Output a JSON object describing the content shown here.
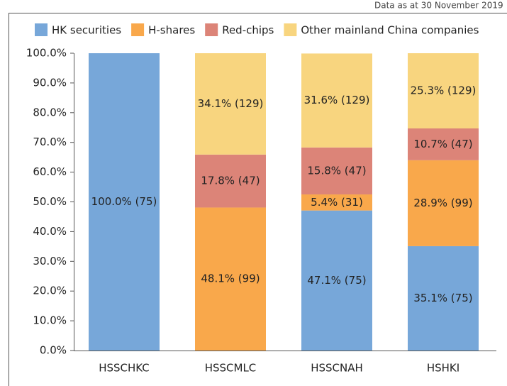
{
  "chart_data": {
    "type": "stacked_bar",
    "subtitle": "Data as at 30 November 2019",
    "categories": [
      "HSSCHKC",
      "HSSCMLC",
      "HSSCNAH",
      "HSHKI"
    ],
    "series": [
      {
        "name": "HK securities",
        "color": "#77a7d9",
        "values": [
          100.0,
          null,
          47.1,
          35.1
        ],
        "value_labels": [
          "100.0% (75)",
          null,
          "47.1% (75)",
          "35.1% (75)"
        ]
      },
      {
        "name": "H-shares",
        "color": "#f9a84b",
        "values": [
          null,
          48.1,
          5.4,
          28.9
        ],
        "value_labels": [
          null,
          "48.1% (99)",
          "5.4% (31)",
          "28.9% (99)"
        ]
      },
      {
        "name": "Red-chips",
        "color": "#dc8478",
        "values": [
          null,
          17.8,
          15.8,
          10.7
        ],
        "value_labels": [
          null,
          "17.8% (47)",
          "15.8% (47)",
          "10.7% (47)"
        ]
      },
      {
        "name": "Other mainland China companies",
        "color": "#f8d57f",
        "values": [
          null,
          34.1,
          31.6,
          25.3
        ],
        "value_labels": [
          null,
          "34.1% (129)",
          "31.6% (129)",
          "25.3% (129)"
        ]
      }
    ],
    "ylim": [
      0,
      100
    ],
    "yticks": [
      {
        "value": 0,
        "label": "0.0%"
      },
      {
        "value": 10,
        "label": "10.0%"
      },
      {
        "value": 20,
        "label": "20.0%"
      },
      {
        "value": 30,
        "label": "30.0%"
      },
      {
        "value": 40,
        "label": "40.0%"
      },
      {
        "value": 50,
        "label": "50.0%"
      },
      {
        "value": 60,
        "label": "60.0%"
      },
      {
        "value": 70,
        "label": "70.0%"
      },
      {
        "value": 80,
        "label": "80.0%"
      },
      {
        "value": 90,
        "label": "90.0%"
      },
      {
        "value": 100,
        "label": "100.0%"
      }
    ],
    "legend": "top"
  }
}
